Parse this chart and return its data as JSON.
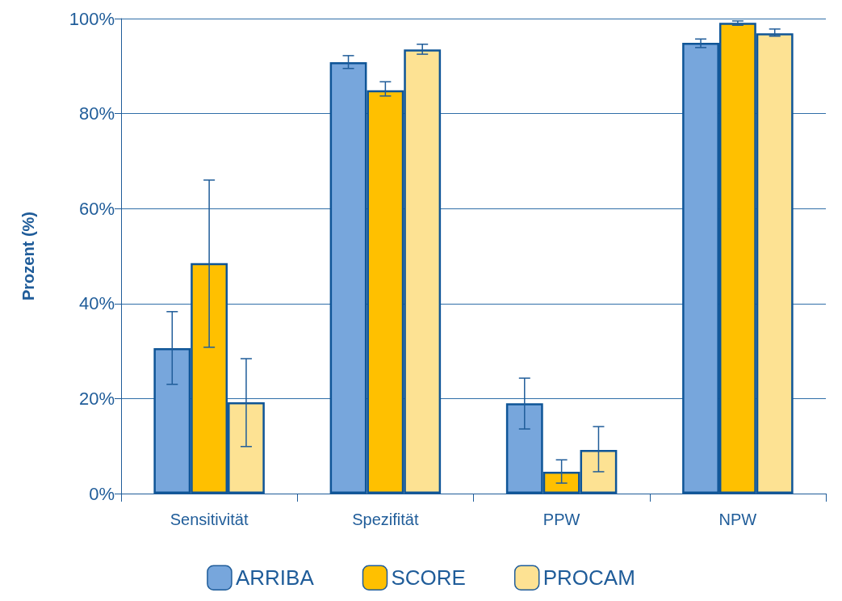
{
  "chart_data": {
    "type": "bar",
    "ylabel": "Prozent (%)",
    "categories": [
      "Sensitivität",
      "Spezifität",
      "PPW",
      "NPW"
    ],
    "series": [
      {
        "name": "ARRIBA",
        "color": "#77a6dc",
        "values": [
          30.6,
          90.8,
          19.0,
          94.9
        ],
        "errors": [
          [
            23.0,
            38.3
          ],
          [
            89.5,
            92.2
          ],
          [
            13.6,
            24.3
          ],
          [
            93.9,
            95.7
          ]
        ]
      },
      {
        "name": "SCORE",
        "color": "#ffc000",
        "values": [
          48.5,
          84.9,
          4.6,
          99.1
        ],
        "errors": [
          [
            30.8,
            66.0
          ],
          [
            83.7,
            86.7
          ],
          [
            2.2,
            7.1
          ],
          [
            98.6,
            99.5
          ]
        ]
      },
      {
        "name": "PROCAM",
        "color": "#fde293",
        "values": [
          19.2,
          93.5,
          9.2,
          96.9
        ],
        "errors": [
          [
            9.9,
            28.4
          ],
          [
            92.5,
            94.6
          ],
          [
            4.6,
            14.1
          ],
          [
            96.3,
            97.8
          ]
        ]
      }
    ],
    "ylim": [
      0,
      100
    ],
    "yticks": [
      {
        "value": 0,
        "label": "0%"
      },
      {
        "value": 20,
        "label": "20%"
      },
      {
        "value": 40,
        "label": "40%"
      },
      {
        "value": 60,
        "label": "60%"
      },
      {
        "value": 80,
        "label": "80%"
      },
      {
        "value": 100,
        "label": "100%"
      }
    ],
    "grid": "y",
    "legend": "bottom"
  }
}
